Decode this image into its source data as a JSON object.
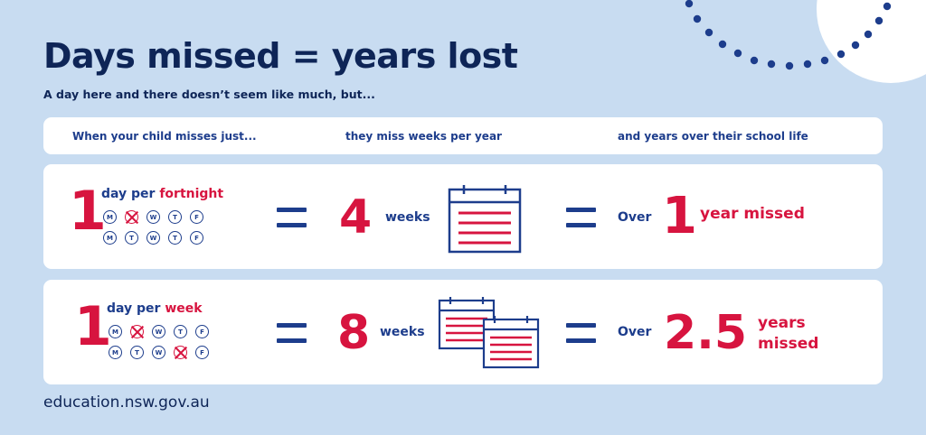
{
  "title": "Days missed = years lost",
  "subtitle": "A day here and there doesn’t seem like much, but...",
  "columns": [
    "When your child misses just...",
    "they miss weeks per year",
    "and years over their school life"
  ],
  "rows": [
    {
      "count": "1",
      "day_per": "day per",
      "period": "fortnight",
      "week1": [
        "M",
        "T",
        "W",
        "T",
        "F"
      ],
      "week2": [
        "M",
        "T",
        "W",
        "T",
        "F"
      ],
      "weeks_number": "4",
      "weeks_label": "weeks",
      "over": "Over",
      "years_number": "1",
      "years_label": "year missed"
    },
    {
      "count": "1",
      "day_per": "day per",
      "period": "week",
      "week1": [
        "M",
        "T",
        "W",
        "T",
        "F"
      ],
      "week2": [
        "M",
        "T",
        "W",
        "T",
        "F"
      ],
      "weeks_number": "8",
      "weeks_label": "weeks",
      "over": "Over",
      "years_number": "2.5",
      "years_label_1": "years",
      "years_label_2": "missed"
    }
  ],
  "icons": [
    "calendar-icon",
    "two-calendars-icon",
    "equals-icon",
    "crossed-day-icon"
  ],
  "colors": {
    "background": "#c8dcf1",
    "navy": "#1d3d8c",
    "red": "#d7143f",
    "card": "#ffffff"
  },
  "footer": "education.nsw.gov.au"
}
